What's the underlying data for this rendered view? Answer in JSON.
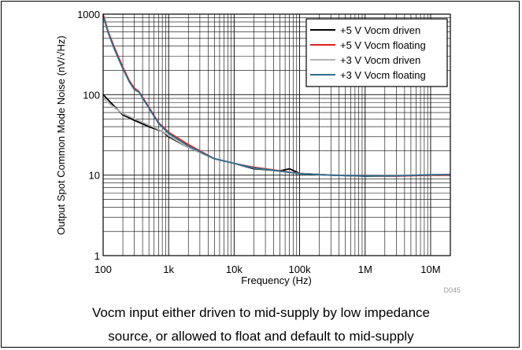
{
  "chart_data": {
    "type": "line",
    "xlabel": "Frequency (Hz)",
    "ylabel": "Output Spot Common Mode Noise (nV/√Hz)",
    "x_scale": "log",
    "y_scale": "log",
    "xlim": [
      100,
      20000000
    ],
    "ylim": [
      1,
      1000
    ],
    "x_ticks": [
      100,
      1000,
      10000,
      100000,
      1000000,
      10000000
    ],
    "x_tick_labels": [
      "100",
      "1k",
      "10k",
      "100k",
      "1M",
      "10M"
    ],
    "y_ticks": [
      1,
      10,
      100,
      1000
    ],
    "y_tick_labels": [
      "1",
      "10",
      "100",
      "1000"
    ],
    "grid": true,
    "legend_position": "top-right",
    "figure_id": "D045",
    "series": [
      {
        "name": "+5 V Vocm driven",
        "color": "#000000",
        "dash": "solid",
        "points": [
          [
            100,
            100
          ],
          [
            130,
            80
          ],
          [
            200,
            56
          ],
          [
            300,
            48
          ],
          [
            500,
            40
          ],
          [
            800,
            35
          ],
          [
            1000,
            30
          ],
          [
            2000,
            22
          ],
          [
            5000,
            16
          ],
          [
            10000,
            14
          ],
          [
            20000,
            12
          ],
          [
            50000,
            11.3
          ],
          [
            70000,
            12
          ],
          [
            100000,
            10.5
          ],
          [
            300000,
            10
          ],
          [
            1000000,
            9.7
          ],
          [
            3000000,
            9.8
          ],
          [
            10000000,
            10
          ],
          [
            20000000,
            10
          ]
        ]
      },
      {
        "name": "+5 V Vocm floating",
        "color": "#e0201b",
        "dash": "solid",
        "points": [
          [
            100,
            1000
          ],
          [
            120,
            600
          ],
          [
            150,
            380
          ],
          [
            200,
            220
          ],
          [
            250,
            150
          ],
          [
            300,
            120
          ],
          [
            350,
            110
          ],
          [
            500,
            70
          ],
          [
            700,
            45
          ],
          [
            1000,
            34
          ],
          [
            2000,
            24
          ],
          [
            5000,
            16
          ],
          [
            10000,
            14
          ],
          [
            20000,
            12.5
          ],
          [
            50000,
            11.3
          ],
          [
            100000,
            10.5
          ],
          [
            300000,
            10
          ],
          [
            1000000,
            9.8
          ],
          [
            3000000,
            9.7
          ],
          [
            10000000,
            10
          ],
          [
            20000000,
            10
          ]
        ]
      },
      {
        "name": "+3 V Vocm driven",
        "color": "#b4b4b4",
        "dash": "solid",
        "points": [
          [
            100,
            90
          ],
          [
            130,
            75
          ],
          [
            200,
            58
          ],
          [
            300,
            50
          ],
          [
            500,
            42
          ],
          [
            800,
            35
          ],
          [
            1000,
            31
          ],
          [
            2000,
            22
          ],
          [
            5000,
            16
          ],
          [
            10000,
            14
          ],
          [
            20000,
            12.2
          ],
          [
            50000,
            11.2
          ],
          [
            100000,
            10.5
          ],
          [
            300000,
            10
          ],
          [
            1000000,
            9.8
          ],
          [
            3000000,
            9.9
          ],
          [
            10000000,
            10.1
          ],
          [
            20000000,
            10.2
          ]
        ]
      },
      {
        "name": "+3 V Vocm floating",
        "color": "#2f6f91",
        "dash": "solid",
        "points": [
          [
            100,
            950
          ],
          [
            120,
            580
          ],
          [
            150,
            360
          ],
          [
            200,
            210
          ],
          [
            250,
            145
          ],
          [
            300,
            115
          ],
          [
            350,
            108
          ],
          [
            500,
            68
          ],
          [
            700,
            44
          ],
          [
            1000,
            33
          ],
          [
            2000,
            23
          ],
          [
            5000,
            16
          ],
          [
            10000,
            14
          ],
          [
            20000,
            12.3
          ],
          [
            50000,
            11.2
          ],
          [
            100000,
            10.4
          ],
          [
            300000,
            10
          ],
          [
            1000000,
            9.8
          ],
          [
            3000000,
            9.8
          ],
          [
            10000000,
            10.1
          ],
          [
            20000000,
            10.2
          ]
        ]
      }
    ]
  },
  "caption": {
    "line1": "Vocm input either driven to mid-supply by low impedance",
    "line2": "source, or allowed to float and default to mid-supply"
  }
}
